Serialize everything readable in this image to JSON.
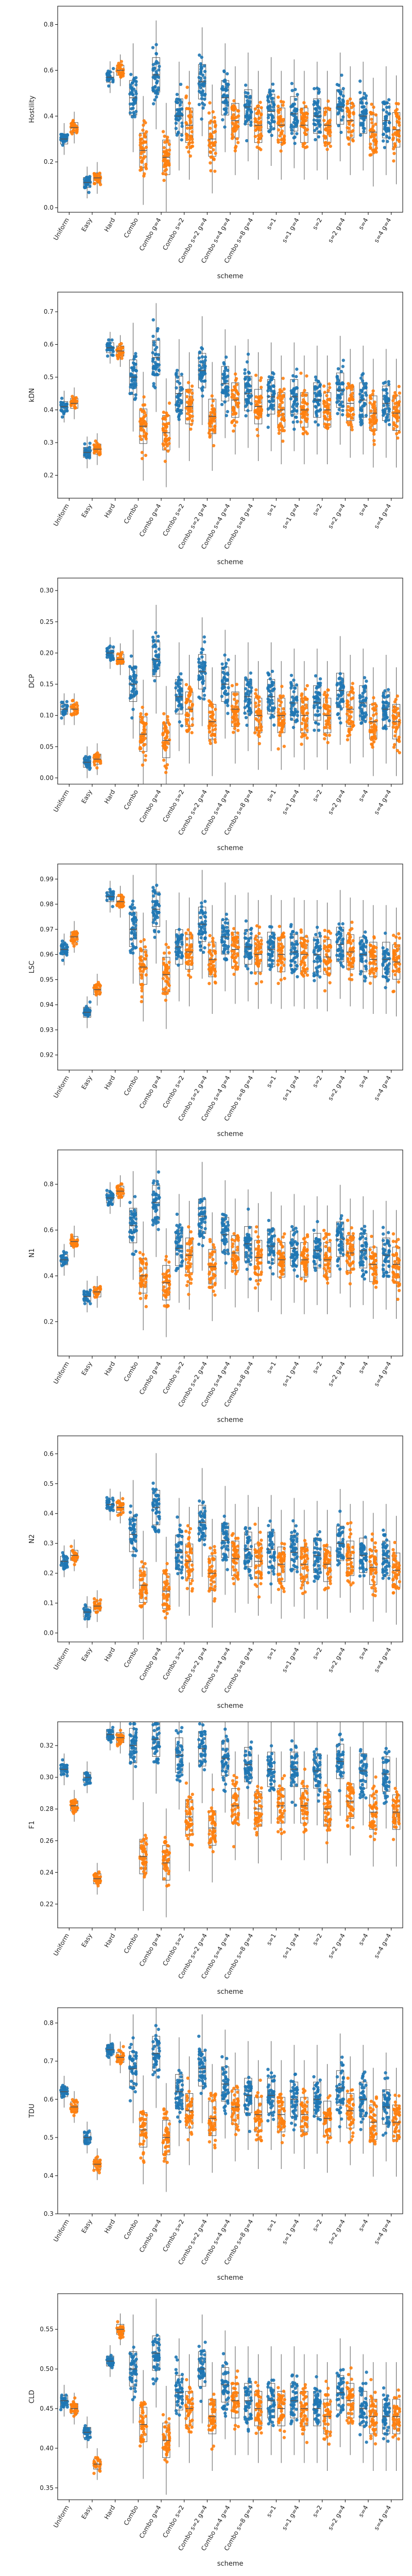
{
  "colors": {
    "series_a": "#1f77b4",
    "series_b": "#ff7f0e",
    "box": "#555555",
    "axis": "#000000"
  },
  "chart_data": [
    {
      "type": "scatter",
      "title": "",
      "xlabel": "scheme",
      "ylabel": "Hostility",
      "ylim": [
        -0.02,
        0.88
      ],
      "yticks": [
        0.0,
        0.2,
        0.4,
        0.6,
        0.8
      ],
      "tick_format": "0.0",
      "categories": [
        "Uniform",
        "Easy",
        "Hard",
        "Combo",
        "Combo g=4",
        "Combo s=2",
        "Combo s=2 g=4",
        "Combo s=4 g=4",
        "Combo s=8 g=4",
        "s=1",
        "s=1 g=4",
        "s=2",
        "s=2 g=4",
        "s=4",
        "s=4 g=4"
      ],
      "series": [
        {
          "values": [
            0.3,
            0.11,
            0.57,
            0.48,
            0.58,
            0.4,
            0.55,
            0.48,
            0.44,
            0.42,
            0.41,
            0.4,
            0.44,
            0.4,
            0.38
          ]
        },
        {
          "values": [
            0.35,
            0.13,
            0.6,
            0.25,
            0.22,
            0.36,
            0.3,
            0.38,
            0.36,
            0.36,
            0.36,
            0.36,
            0.38,
            0.33,
            0.34
          ]
        }
      ]
    },
    {
      "type": "scatter",
      "title": "",
      "xlabel": "scheme",
      "ylabel": "kDN",
      "ylim": [
        0.13,
        0.76
      ],
      "yticks": [
        0.2,
        0.3,
        0.4,
        0.5,
        0.6,
        0.7
      ],
      "tick_format": "0.0",
      "categories": [
        "Uniform",
        "Easy",
        "Hard",
        "Combo",
        "Combo g=4",
        "Combo s=2",
        "Combo s=2 g=4",
        "Combo s=4 g=4",
        "Combo s=8 g=4",
        "s=1",
        "s=1 g=4",
        "s=2",
        "s=2 g=4",
        "s=4",
        "s=4 g=4"
      ],
      "series": [
        {
          "values": [
            0.41,
            0.27,
            0.59,
            0.5,
            0.56,
            0.45,
            0.52,
            0.48,
            0.45,
            0.44,
            0.44,
            0.43,
            0.46,
            0.43,
            0.42
          ]
        },
        {
          "values": [
            0.42,
            0.28,
            0.58,
            0.35,
            0.33,
            0.41,
            0.38,
            0.43,
            0.41,
            0.4,
            0.4,
            0.4,
            0.42,
            0.39,
            0.39
          ]
        }
      ]
    },
    {
      "type": "scatter",
      "title": "",
      "xlabel": "scheme",
      "ylabel": "DCP",
      "ylim": [
        -0.01,
        0.32
      ],
      "yticks": [
        0.0,
        0.05,
        0.1,
        0.15,
        0.2,
        0.25,
        0.3
      ],
      "tick_format": "0.00",
      "categories": [
        "Uniform",
        "Easy",
        "Hard",
        "Combo",
        "Combo g=4",
        "Combo s=2",
        "Combo s=2 g=4",
        "Combo s=4 g=4",
        "Combo s=8 g=4",
        "s=1",
        "s=1 g=4",
        "s=2",
        "s=2 g=4",
        "s=4",
        "s=4 g=4"
      ],
      "series": [
        {
          "values": [
            0.11,
            0.025,
            0.2,
            0.15,
            0.19,
            0.13,
            0.17,
            0.15,
            0.13,
            0.13,
            0.12,
            0.12,
            0.14,
            0.12,
            0.11
          ]
        },
        {
          "values": [
            0.11,
            0.03,
            0.19,
            0.07,
            0.06,
            0.11,
            0.09,
            0.11,
            0.1,
            0.1,
            0.1,
            0.1,
            0.11,
            0.09,
            0.09
          ]
        }
      ]
    },
    {
      "type": "scatter",
      "title": "",
      "xlabel": "scheme",
      "ylabel": "LSC",
      "ylim": [
        0.914,
        0.996
      ],
      "yticks": [
        0.92,
        0.93,
        0.94,
        0.95,
        0.96,
        0.97,
        0.98,
        0.99
      ],
      "tick_format": "0.00",
      "categories": [
        "Uniform",
        "Easy",
        "Hard",
        "Combo",
        "Combo g=4",
        "Combo s=2",
        "Combo s=2 g=4",
        "Combo s=4 g=4",
        "Combo s=8 g=4",
        "s=1",
        "s=1 g=4",
        "s=2",
        "s=2 g=4",
        "s=4",
        "s=4 g=4"
      ],
      "series": [
        {
          "values": [
            0.962,
            0.937,
            0.983,
            0.97,
            0.978,
            0.963,
            0.972,
            0.967,
            0.963,
            0.962,
            0.961,
            0.96,
            0.964,
            0.96,
            0.958
          ]
        },
        {
          "values": [
            0.967,
            0.946,
            0.981,
            0.955,
            0.952,
            0.961,
            0.958,
            0.962,
            0.96,
            0.96,
            0.96,
            0.959,
            0.961,
            0.958,
            0.957
          ]
        }
      ]
    },
    {
      "type": "scatter",
      "title": "",
      "xlabel": "scheme",
      "ylabel": "N1",
      "ylim": [
        0.05,
        0.95
      ],
      "yticks": [
        0.2,
        0.4,
        0.6,
        0.8
      ],
      "tick_format": "0.0",
      "categories": [
        "Uniform",
        "Easy",
        "Hard",
        "Combo",
        "Combo g=4",
        "Combo s=2",
        "Combo s=2 g=4",
        "Combo s=4 g=4",
        "Combo s=8 g=4",
        "s=1",
        "s=1 g=4",
        "s=2",
        "s=2 g=4",
        "s=4",
        "s=4 g=4"
      ],
      "series": [
        {
          "values": [
            0.47,
            0.31,
            0.74,
            0.62,
            0.72,
            0.52,
            0.66,
            0.58,
            0.54,
            0.53,
            0.52,
            0.51,
            0.56,
            0.51,
            0.49
          ]
        },
        {
          "values": [
            0.55,
            0.33,
            0.77,
            0.4,
            0.37,
            0.49,
            0.44,
            0.5,
            0.48,
            0.47,
            0.47,
            0.47,
            0.5,
            0.45,
            0.45
          ]
        }
      ]
    },
    {
      "type": "scatter",
      "title": "",
      "xlabel": "scheme",
      "ylabel": "N2",
      "ylim": [
        -0.03,
        0.66
      ],
      "yticks": [
        0.0,
        0.1,
        0.2,
        0.3,
        0.4,
        0.5,
        0.6
      ],
      "tick_format": "0.0",
      "categories": [
        "Uniform",
        "Easy",
        "Hard",
        "Combo",
        "Combo g=4",
        "Combo s=2",
        "Combo s=2 g=4",
        "Combo s=4 g=4",
        "Combo s=8 g=4",
        "s=1",
        "s=1 g=4",
        "s=2",
        "s=2 g=4",
        "s=4",
        "s=4 g=4"
      ],
      "series": [
        {
          "values": [
            0.24,
            0.07,
            0.43,
            0.33,
            0.42,
            0.27,
            0.37,
            0.31,
            0.28,
            0.28,
            0.27,
            0.26,
            0.3,
            0.26,
            0.25
          ]
        },
        {
          "values": [
            0.26,
            0.09,
            0.42,
            0.16,
            0.14,
            0.24,
            0.2,
            0.25,
            0.24,
            0.23,
            0.23,
            0.23,
            0.25,
            0.22,
            0.21
          ]
        }
      ]
    },
    {
      "type": "scatter",
      "title": "",
      "xlabel": "scheme",
      "ylabel": "F1",
      "ylim": [
        0.205,
        0.335
      ],
      "yticks": [
        0.22,
        0.24,
        0.26,
        0.28,
        0.3,
        0.32
      ],
      "tick_format": "0.00",
      "categories": [
        "Uniform",
        "Easy",
        "Hard",
        "Combo",
        "Combo g=4",
        "Combo s=2",
        "Combo s=2 g=4",
        "Combo s=4 g=4",
        "Combo s=8 g=4",
        "s=1",
        "s=1 g=4",
        "s=2",
        "s=2 g=4",
        "s=4",
        "s=4 g=4"
      ],
      "series": [
        {
          "values": [
            0.305,
            0.3,
            0.327,
            0.32,
            0.324,
            0.314,
            0.318,
            0.312,
            0.308,
            0.305,
            0.305,
            0.304,
            0.31,
            0.304,
            0.302
          ]
        },
        {
          "values": [
            0.282,
            0.236,
            0.325,
            0.25,
            0.246,
            0.275,
            0.268,
            0.282,
            0.28,
            0.282,
            0.282,
            0.28,
            0.285,
            0.278,
            0.278
          ]
        }
      ]
    },
    {
      "type": "scatter",
      "title": "",
      "xlabel": "scheme",
      "ylabel": "TDU",
      "ylim": [
        0.3,
        0.84
      ],
      "yticks": [
        0.3,
        0.4,
        0.5,
        0.6,
        0.7,
        0.8
      ],
      "tick_format": "0.0",
      "categories": [
        "Uniform",
        "Easy",
        "Hard",
        "Combo",
        "Combo g=4",
        "Combo s=2",
        "Combo s=2 g=4",
        "Combo s=4 g=4",
        "Combo s=8 g=4",
        "s=1",
        "s=1 g=4",
        "s=2",
        "s=2 g=4",
        "s=4",
        "s=4 g=4"
      ],
      "series": [
        {
          "values": [
            0.62,
            0.5,
            0.73,
            0.68,
            0.72,
            0.62,
            0.68,
            0.64,
            0.61,
            0.61,
            0.6,
            0.6,
            0.63,
            0.6,
            0.58
          ]
        },
        {
          "values": [
            0.58,
            0.43,
            0.71,
            0.52,
            0.5,
            0.57,
            0.55,
            0.58,
            0.56,
            0.56,
            0.56,
            0.55,
            0.57,
            0.54,
            0.54
          ]
        }
      ]
    },
    {
      "type": "scatter",
      "title": "",
      "xlabel": "scheme",
      "ylabel": "CLD",
      "ylim": [
        0.335,
        0.595
      ],
      "yticks": [
        0.35,
        0.4,
        0.45,
        0.5,
        0.55
      ],
      "tick_format": "0.00",
      "categories": [
        "Uniform",
        "Easy",
        "Hard",
        "Combo",
        "Combo g=4",
        "Combo s=2",
        "Combo s=2 g=4",
        "Combo s=4 g=4",
        "Combo s=8 g=4",
        "s=1",
        "s=1 g=4",
        "s=2",
        "s=2 g=4",
        "s=4",
        "s=4 g=4"
      ],
      "series": [
        {
          "values": [
            0.46,
            0.42,
            0.51,
            0.5,
            0.52,
            0.47,
            0.5,
            0.48,
            0.46,
            0.46,
            0.46,
            0.45,
            0.47,
            0.45,
            0.44
          ]
        },
        {
          "values": [
            0.45,
            0.38,
            0.55,
            0.43,
            0.41,
            0.45,
            0.44,
            0.46,
            0.45,
            0.45,
            0.45,
            0.44,
            0.46,
            0.44,
            0.44
          ]
        }
      ]
    }
  ]
}
